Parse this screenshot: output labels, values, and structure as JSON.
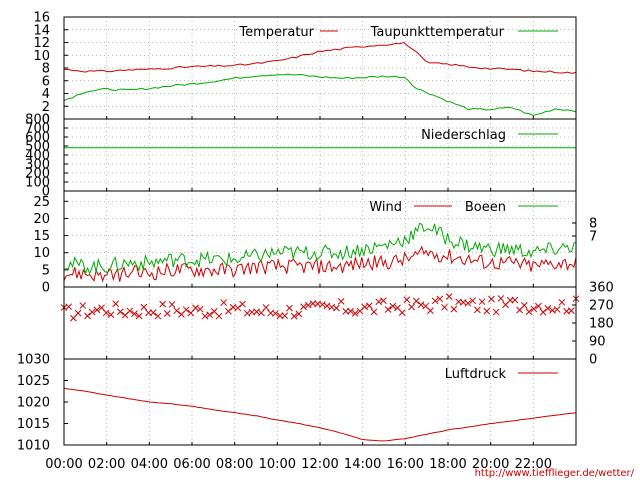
{
  "chart_data": [
    {
      "type": "line",
      "panel": "temperature",
      "ylim": [
        0,
        16
      ],
      "y_ticks": [
        "0",
        "2",
        "4",
        "6",
        "8",
        "10",
        "12",
        "14",
        "16"
      ],
      "grid": true,
      "legend_placement": "top-right",
      "x": [
        "00:00",
        "01:00",
        "02:00",
        "03:00",
        "04:00",
        "05:00",
        "06:00",
        "07:00",
        "08:00",
        "09:00",
        "10:00",
        "11:00",
        "12:00",
        "13:00",
        "14:00",
        "15:00",
        "16:00",
        "16:30",
        "17:00",
        "18:00",
        "19:00",
        "20:00",
        "21:00",
        "22:00",
        "23:00",
        "24:00"
      ],
      "series": [
        {
          "name": "Temperatur",
          "color": "#cc0000",
          "values": [
            7.8,
            7.5,
            7.5,
            7.7,
            7.8,
            8.0,
            8.2,
            8.3,
            8.4,
            8.7,
            9.1,
            9.8,
            10.6,
            11.0,
            11.4,
            11.7,
            11.9,
            10.5,
            8.8,
            8.6,
            8.2,
            7.9,
            7.8,
            7.5,
            7.4,
            7.2
          ]
        },
        {
          "name": "Taupunkttemperatur",
          "color": "#00aa00",
          "values": [
            2.9,
            4.3,
            4.7,
            4.5,
            4.8,
            5.2,
            5.5,
            5.9,
            6.4,
            6.8,
            7.0,
            6.9,
            6.6,
            6.4,
            6.5,
            6.7,
            6.6,
            4.8,
            4.2,
            2.8,
            1.5,
            1.5,
            1.8,
            0.5,
            1.6,
            1.3
          ]
        }
      ]
    },
    {
      "type": "line",
      "panel": "precipitation",
      "ylim": [
        0,
        800
      ],
      "y_ticks": [
        "0",
        "100",
        "200",
        "300",
        "400",
        "500",
        "600",
        "700",
        "800"
      ],
      "grid": true,
      "legend_placement": "top-right",
      "x": [
        "00:00",
        "24:00"
      ],
      "series": [
        {
          "name": "Niederschlag",
          "color": "#00aa00",
          "values": [
            480,
            480
          ]
        }
      ]
    },
    {
      "type": "line",
      "panel": "wind",
      "ylim": [
        0,
        28
      ],
      "y_ticks": [
        "0",
        "5",
        "10",
        "15",
        "20",
        "25"
      ],
      "y2_ticks": [
        "7",
        "8"
      ],
      "grid": true,
      "legend_placement": "top-right",
      "x": [
        "00:00",
        "01:00",
        "02:00",
        "03:00",
        "04:00",
        "05:00",
        "06:00",
        "07:00",
        "08:00",
        "09:00",
        "10:00",
        "11:00",
        "12:00",
        "13:00",
        "14:00",
        "15:00",
        "16:00",
        "17:00",
        "18:00",
        "19:00",
        "20:00",
        "21:00",
        "22:00",
        "23:00",
        "24:00"
      ],
      "series": [
        {
          "name": "Wind",
          "color": "#cc0000",
          "values": [
            4,
            4,
            3,
            4,
            4,
            5,
            5,
            5,
            5,
            6,
            6,
            6,
            6,
            6,
            7,
            7,
            8,
            10,
            9,
            8,
            7,
            7,
            6,
            7,
            7
          ]
        },
        {
          "name": "Boeen",
          "color": "#00aa00",
          "values": [
            7,
            6,
            6,
            7,
            7,
            8,
            8,
            8,
            8,
            9,
            10,
            10,
            10,
            10,
            11,
            12,
            14,
            18,
            14,
            12,
            11,
            11,
            10,
            11,
            12
          ]
        }
      ]
    },
    {
      "type": "scatter",
      "panel": "wind-direction",
      "ylim": [
        0,
        360
      ],
      "y2_ticks": [
        "0",
        "90",
        "180",
        "270",
        "360"
      ],
      "grid": true,
      "x": [
        "00:00",
        "01:00",
        "02:00",
        "03:00",
        "04:00",
        "05:00",
        "06:00",
        "07:00",
        "08:00",
        "09:00",
        "10:00",
        "11:00",
        "12:00",
        "13:00",
        "14:00",
        "15:00",
        "16:00",
        "17:00",
        "18:00",
        "19:00",
        "20:00",
        "21:00",
        "22:00",
        "23:00",
        "24:00"
      ],
      "series": [
        {
          "color": "#cc0000",
          "values": [
            230,
            240,
            250,
            240,
            245,
            250,
            240,
            245,
            250,
            240,
            235,
            245,
            250,
            255,
            250,
            260,
            265,
            270,
            280,
            270,
            265,
            275,
            270,
            265,
            270
          ]
        }
      ]
    },
    {
      "type": "line",
      "panel": "pressure",
      "ylim": [
        1010,
        1030
      ],
      "y_ticks": [
        "1010",
        "1015",
        "1020",
        "1025",
        "1030"
      ],
      "grid": false,
      "legend_placement": "top-right",
      "x": [
        "00:00",
        "01:00",
        "02:00",
        "03:00",
        "04:00",
        "05:00",
        "06:00",
        "07:00",
        "08:00",
        "09:00",
        "10:00",
        "11:00",
        "12:00",
        "13:00",
        "14:00",
        "15:00",
        "16:00",
        "17:00",
        "18:00",
        "19:00",
        "20:00",
        "21:00",
        "22:00",
        "23:00",
        "24:00"
      ],
      "series": [
        {
          "name": "Luftdruck",
          "color": "#cc0000",
          "values": [
            1023.2,
            1022.5,
            1021.6,
            1020.8,
            1020.0,
            1019.6,
            1019.0,
            1018.2,
            1017.5,
            1016.8,
            1015.8,
            1015.0,
            1014.0,
            1012.8,
            1011.3,
            1010.9,
            1011.5,
            1012.5,
            1013.5,
            1014.2,
            1015.0,
            1015.6,
            1016.2,
            1016.9,
            1017.5
          ]
        }
      ]
    }
  ],
  "x_axis": {
    "ticks": [
      "00:00",
      "02:00",
      "04:00",
      "06:00",
      "08:00",
      "10:00",
      "12:00",
      "14:00",
      "16:00",
      "18:00",
      "20:00",
      "22:00"
    ],
    "range_hours": [
      0,
      24
    ]
  },
  "credit": "http://www.tiefflieger.de/wetter/",
  "colors": {
    "red": "#cc0000",
    "green": "#00aa00",
    "frame": "#000000"
  }
}
